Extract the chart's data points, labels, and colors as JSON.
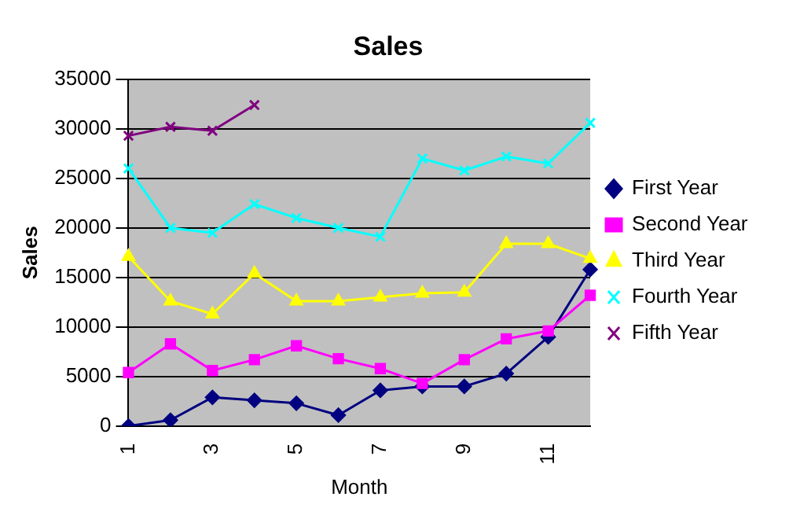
{
  "chart_data": {
    "type": "line",
    "title": "Sales",
    "xlabel": "Month",
    "ylabel": "Sales",
    "categories": [
      "1",
      null,
      "3",
      null,
      "5",
      null,
      "7",
      null,
      "9",
      null,
      "11",
      null
    ],
    "series": [
      {
        "name": "First Year",
        "color": "#000080",
        "marker": "diamond",
        "values": [
          0,
          600,
          2900,
          2600,
          2300,
          1100,
          3600,
          4000,
          4000,
          5300,
          9000,
          15800
        ]
      },
      {
        "name": "Second Year",
        "color": "#ff00ff",
        "marker": "square",
        "values": [
          5400,
          8300,
          5600,
          6700,
          8100,
          6800,
          5800,
          4300,
          6700,
          8800,
          9600,
          13200
        ]
      },
      {
        "name": "Third Year",
        "color": "#ffff00",
        "marker": "triangle",
        "values": [
          17100,
          12600,
          11300,
          15400,
          12600,
          12600,
          13000,
          13400,
          13500,
          18400,
          18400,
          16900
        ]
      },
      {
        "name": "Fourth Year",
        "color": "#00ffff",
        "marker": "cross",
        "values": [
          26000,
          20000,
          19500,
          22400,
          21000,
          20000,
          19100,
          27000,
          25800,
          27200,
          26500,
          30600
        ]
      },
      {
        "name": "Fifth Year",
        "color": "#800080",
        "marker": "cross",
        "values": [
          29300,
          30200,
          29800,
          32400,
          null,
          null,
          null,
          null,
          null,
          null,
          null,
          null
        ]
      }
    ],
    "ylim": [
      0,
      35000
    ],
    "yticks": [
      0,
      5000,
      10000,
      15000,
      20000,
      25000,
      30000,
      35000
    ],
    "grid": "y",
    "legend": "right",
    "line_style": "solid"
  }
}
